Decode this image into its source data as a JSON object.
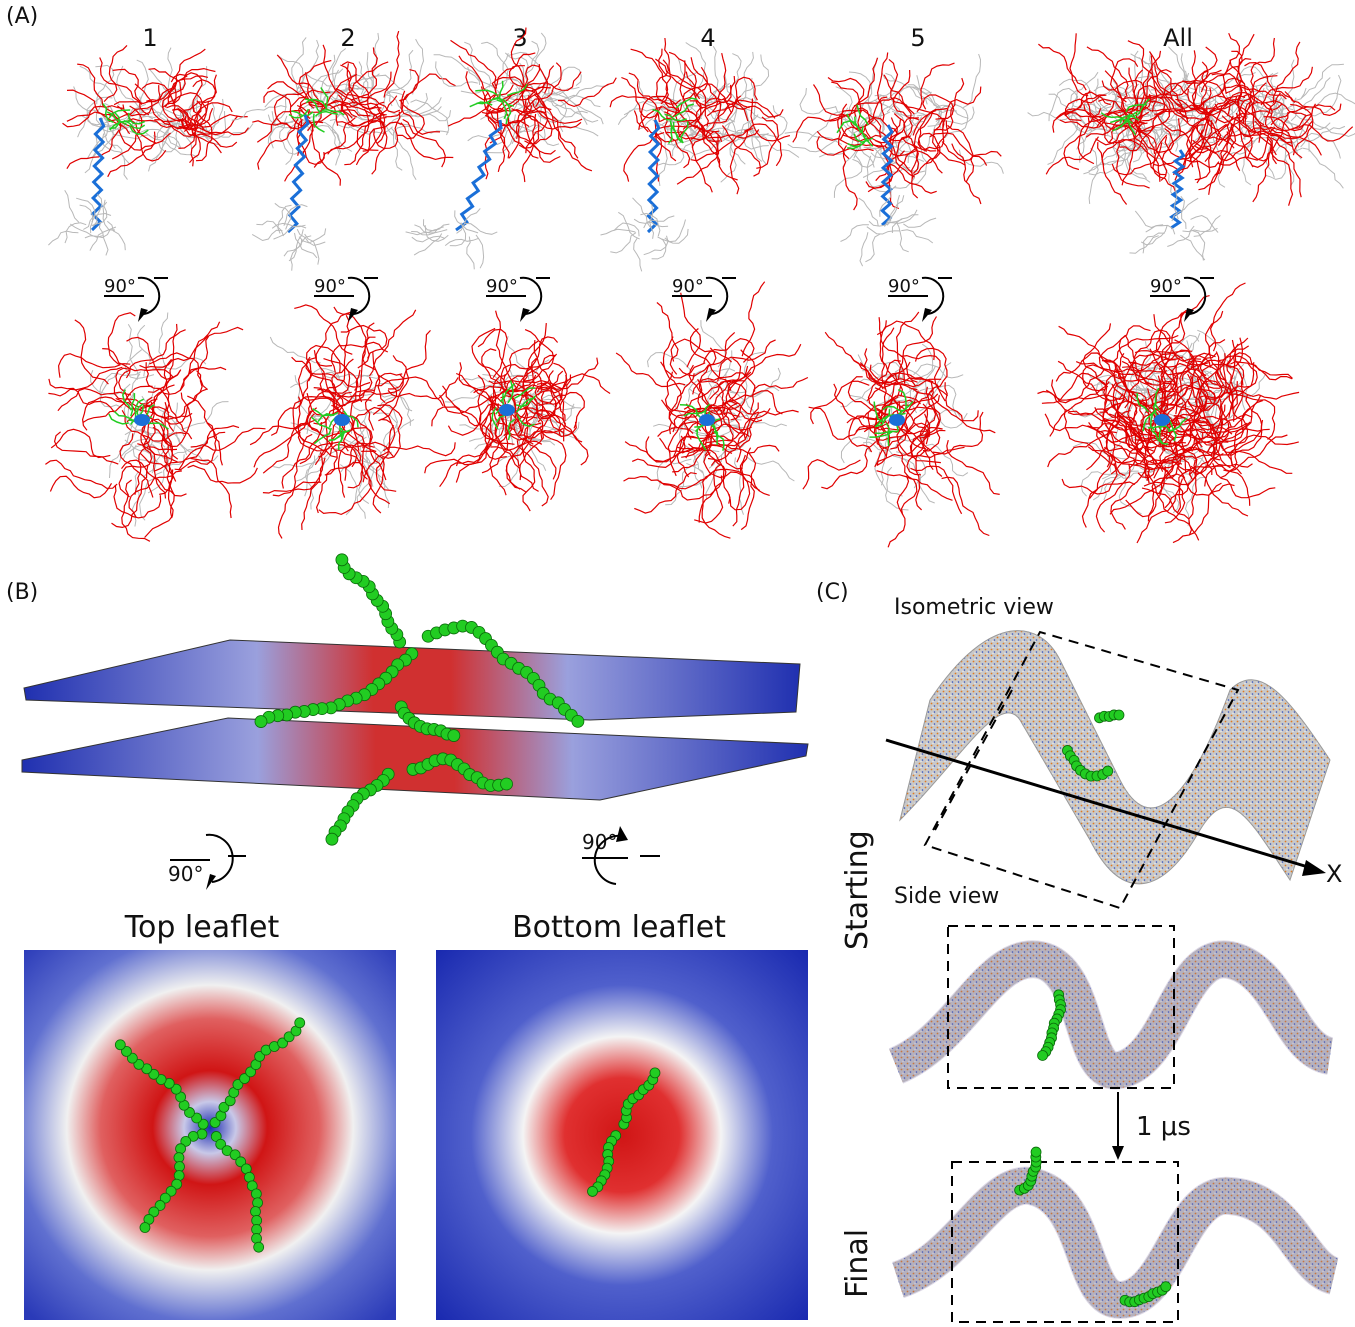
{
  "panels": {
    "a": {
      "letter": "(A)",
      "columns": [
        "1",
        "2",
        "3",
        "4",
        "5",
        "All"
      ],
      "rotation_label": "90°"
    },
    "b": {
      "letter": "(B)",
      "rotation_label": "90°",
      "top_title": "Top leaflet",
      "bottom_title": "Bottom leaflet"
    },
    "c": {
      "letter": "(C)",
      "isometric_label": "Isometric view",
      "side_label": "Side view",
      "axis_label": "X",
      "time_label": "1 μs",
      "starting_label": "Starting",
      "final_label": "Final"
    }
  },
  "colors": {
    "lipid_tail": "#e00000",
    "lipid_gray": "#b8b8b8",
    "headgroup": "#22cc22",
    "linker": "#1a6fd8",
    "membrane_high": "#d01515",
    "membrane_low": "#1a2ab0",
    "bead": "#22cc22"
  },
  "icons": [
    "rotate-arrow-icon",
    "time-arrow-icon",
    "axis-arrow-icon"
  ]
}
